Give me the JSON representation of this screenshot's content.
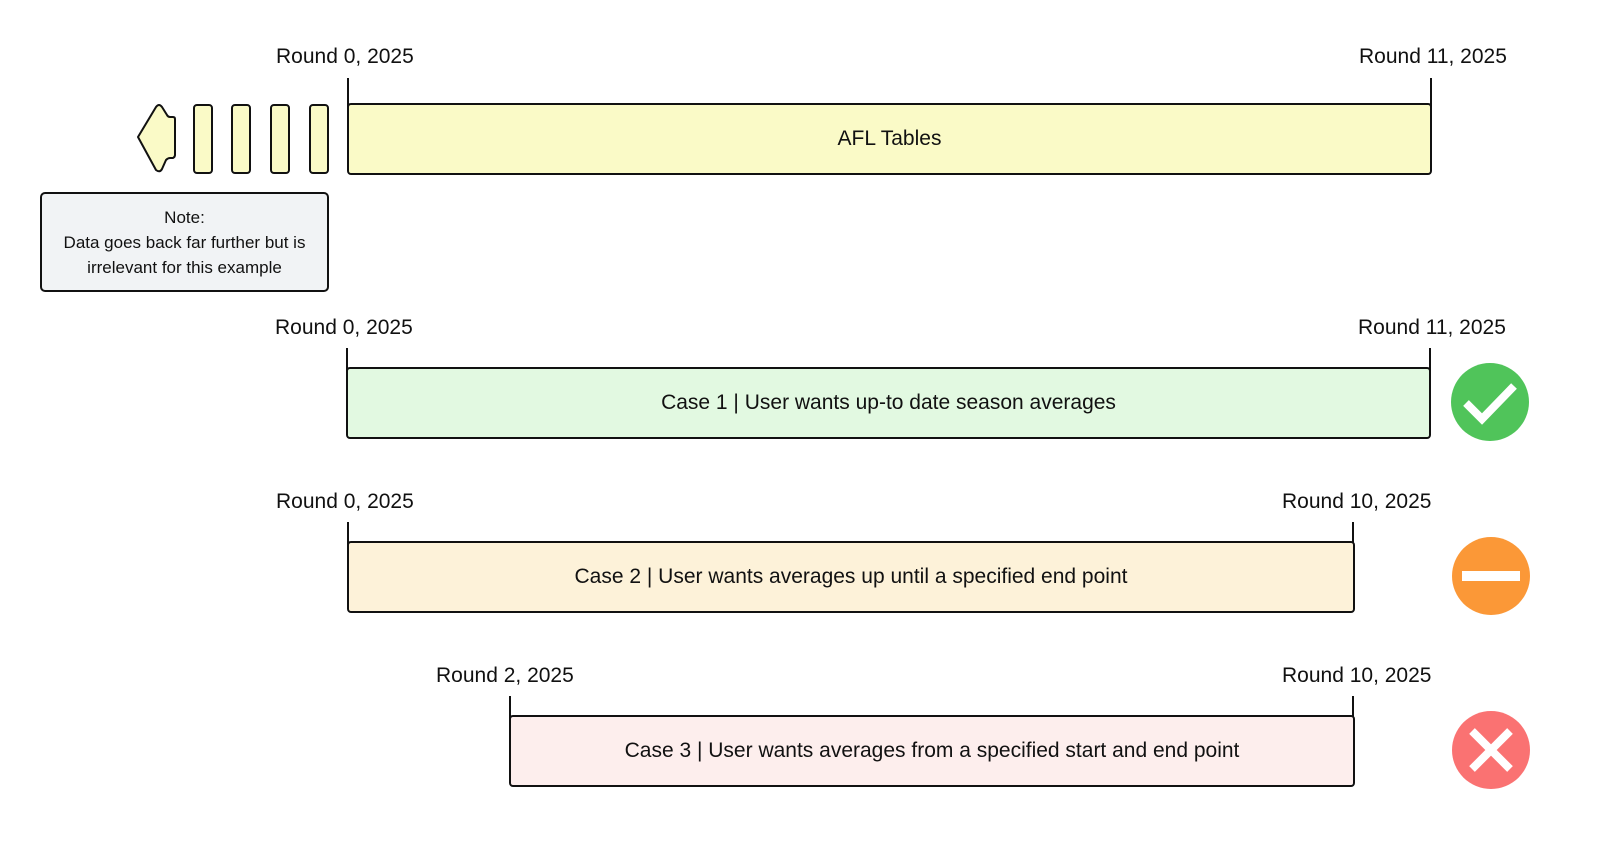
{
  "top_timeline": {
    "start_label": "Round 0, 2025",
    "end_label": "Round 11, 2025",
    "bar_label": "AFL Tables",
    "bar_color": "#fafac7"
  },
  "note": {
    "title": "Note:",
    "line1": "Data goes back far further but is",
    "line2": "irrelevant for this example"
  },
  "cases": [
    {
      "start_label": "Round 0, 2025",
      "end_label": "Round 11, 2025",
      "bar_label": "Case 1 | User wants up-to date season averages",
      "bar_color": "#e2f9e1",
      "status": "check-icon",
      "status_color": "#50c45a"
    },
    {
      "start_label": "Round 0, 2025",
      "end_label": "Round 10, 2025",
      "bar_label": "Case 2 | User wants averages up until a specified end point",
      "bar_color": "#fdf2d9",
      "status": "minus-icon",
      "status_color": "#fb9837"
    },
    {
      "start_label": "Round 2, 2025",
      "end_label": "Round 10, 2025",
      "bar_label": "Case 3 | User wants averages from a specified start and end point",
      "bar_color": "#fdeeed",
      "status": "cross-icon",
      "status_color": "#fa7272"
    }
  ]
}
